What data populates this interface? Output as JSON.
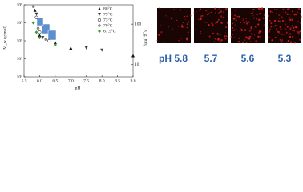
{
  "chart_data": {
    "type": "scatter",
    "x_label": "pH",
    "y_label": "M_w (g/mol)",
    "y2_label": "R_g (nm)",
    "xlim": [
      5.5,
      9.0
    ],
    "xticks": [
      5.5,
      {
        "value": 6.0,
        "label": "6.0"
      },
      6.5,
      {
        "value": 7.0,
        "label": "7.0"
      },
      7.5,
      {
        "value": 8.0,
        "label": "8.0"
      },
      8.5,
      {
        "value": 9.0,
        "label": "9.0"
      }
    ],
    "ylim": [
      10000,
      100000000
    ],
    "ylog": true,
    "yticks": [
      {
        "value": 10000,
        "label": "10⁴"
      },
      {
        "value": 100000,
        "label": "10⁵"
      },
      {
        "value": 1000000,
        "label": "10⁶"
      },
      {
        "value": 10000000,
        "label": "10⁷"
      },
      {
        "value": 100000000,
        "label": "10⁸"
      }
    ],
    "y2lim": [
      5,
      300
    ],
    "y2log": true,
    "y2ticks": [
      10,
      100
    ],
    "series": [
      {
        "name": "80°C",
        "color": "#111111",
        "marker": "triangle-up",
        "x": [
          5.85,
          6.0,
          6.5,
          7.0,
          9.0
        ],
        "values": [
          50000000,
          2000000,
          800000,
          400000,
          150000
        ]
      },
      {
        "name": "75°C",
        "color": "#444444",
        "marker": "triangle-down",
        "x": [
          5.9,
          6.1,
          7.5,
          8.0
        ],
        "values": [
          30000000,
          1500000,
          400000,
          300000
        ]
      },
      {
        "name": "73°C",
        "color": "#333333",
        "marker": "circle-open",
        "x": [
          5.9,
          6.0,
          6.3
        ],
        "values": [
          20000000,
          3000000,
          1000000
        ]
      },
      {
        "name": "70°C",
        "color": "#888888",
        "marker": "circle",
        "x": [
          5.8,
          5.95,
          6.2
        ],
        "values": [
          80000000,
          5000000,
          1200000
        ]
      },
      {
        "name": "67.5°C",
        "color": "#3a9a3a",
        "marker": "diamond",
        "x": [
          5.8,
          5.9,
          6.0,
          6.5
        ],
        "values": [
          10000000,
          3000000,
          1500000,
          600000
        ]
      }
    ]
  },
  "panels": [
    {
      "label": "pH 5.8"
    },
    {
      "label": "5.7"
    },
    {
      "label": "5.6"
    },
    {
      "label": "5.3"
    }
  ]
}
